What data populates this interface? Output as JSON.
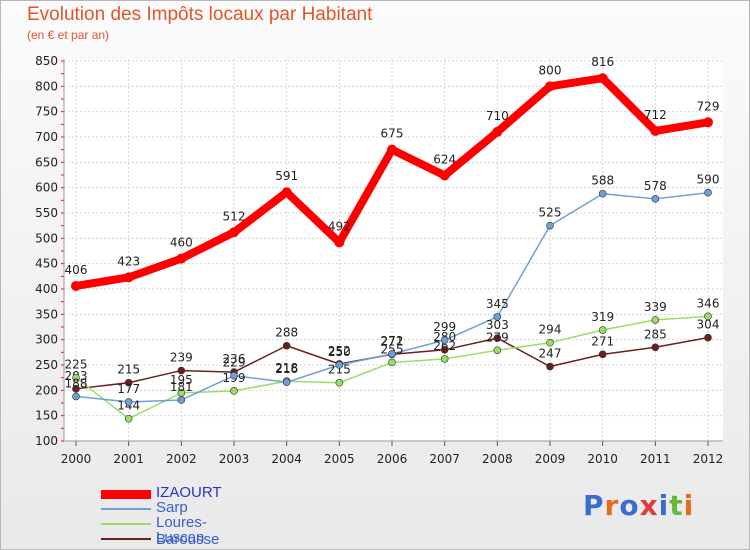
{
  "title": "Evolution des Impôts locaux par Habitant",
  "subtitle": "(en € et par an)",
  "logo_text": "Proxiti",
  "chart_data": {
    "type": "line",
    "x": [
      2000,
      2001,
      2002,
      2003,
      2004,
      2005,
      2006,
      2007,
      2008,
      2009,
      2010,
      2011,
      2012
    ],
    "ylim": [
      100,
      850
    ],
    "yticks": [
      100,
      150,
      200,
      250,
      300,
      350,
      400,
      450,
      500,
      550,
      600,
      650,
      700,
      750,
      800,
      850
    ],
    "grid": true,
    "legend_position": "bottom-left",
    "series": [
      {
        "name": "IZAOURT",
        "color": "#ff0000",
        "values": [
          406,
          423,
          460,
          512,
          591,
          492,
          675,
          624,
          710,
          800,
          816,
          712,
          729
        ]
      },
      {
        "name": "Sarp",
        "color": "#6f9fd8",
        "values": [
          188,
          177,
          181,
          229,
          216,
          250,
          272,
          299,
          345,
          525,
          588,
          578,
          590
        ]
      },
      {
        "name": "Loures-Barousse",
        "color": "#99dd66",
        "values": [
          225,
          144,
          195,
          199,
          218,
          215,
          255,
          262,
          279,
          294,
          319,
          339,
          346
        ]
      },
      {
        "name": "Luscan",
        "color": "#6b1f1f",
        "values": [
          203,
          215,
          239,
          236,
          288,
          252,
          271,
          280,
          303,
          247,
          271,
          285,
          304
        ]
      }
    ]
  }
}
